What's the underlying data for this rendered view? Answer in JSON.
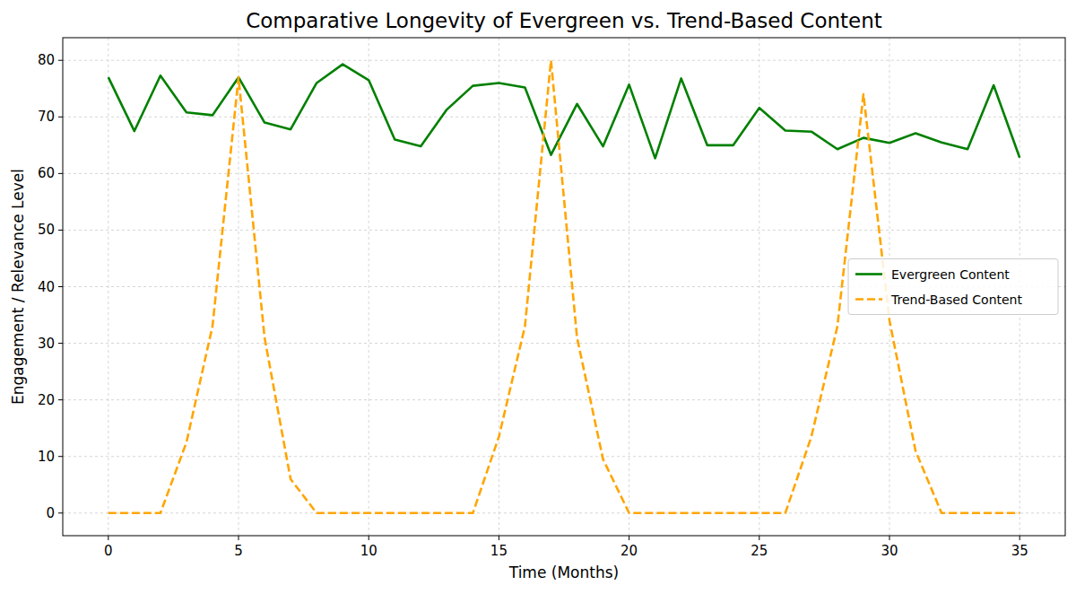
{
  "chart_data": {
    "type": "line",
    "title": "Comparative Longevity of Evergreen vs. Trend-Based Content",
    "x_label": "Time (Months)",
    "y_label": "Engagement / Relevance Level",
    "x": [
      0,
      1,
      2,
      3,
      4,
      5,
      6,
      7,
      8,
      9,
      10,
      11,
      12,
      13,
      14,
      15,
      16,
      17,
      18,
      19,
      20,
      21,
      22,
      23,
      24,
      25,
      26,
      27,
      28,
      29,
      30,
      31,
      32,
      33,
      34,
      35
    ],
    "series": [
      {
        "name": "Evergreen Content",
        "color": "#008000",
        "line_style": "solid",
        "values": [
          77,
          67.5,
          77.3,
          70.8,
          70.3,
          77,
          69,
          67.8,
          76,
          79.3,
          76.5,
          66,
          64.8,
          71.3,
          75.5,
          76,
          75.2,
          63.3,
          72.3,
          64.8,
          75.7,
          62.7,
          76.8,
          65,
          65,
          71.6,
          67.6,
          67.4,
          64.3,
          66.3,
          65.4,
          67.1,
          65.5,
          64.3,
          75.6,
          62.8
        ]
      },
      {
        "name": "Trend-Based Content",
        "color": "#ffa500",
        "line_style": "dashed",
        "values": [
          0,
          0,
          0,
          12.5,
          33,
          77,
          31,
          6,
          0,
          0,
          0,
          0,
          0,
          0,
          0,
          13.5,
          33,
          80,
          31,
          9.5,
          0,
          0,
          0,
          0,
          0,
          0,
          0,
          13.5,
          33,
          74,
          34,
          11,
          0,
          0,
          0,
          0
        ]
      }
    ],
    "xlim": [
      -1.75,
      36.75
    ],
    "ylim": [
      -4,
      84
    ],
    "xticks": [
      0,
      5,
      10,
      15,
      20,
      25,
      30,
      35
    ],
    "yticks": [
      0,
      10,
      20,
      30,
      40,
      50,
      60,
      70,
      80
    ],
    "grid": true,
    "legend": "center right"
  }
}
